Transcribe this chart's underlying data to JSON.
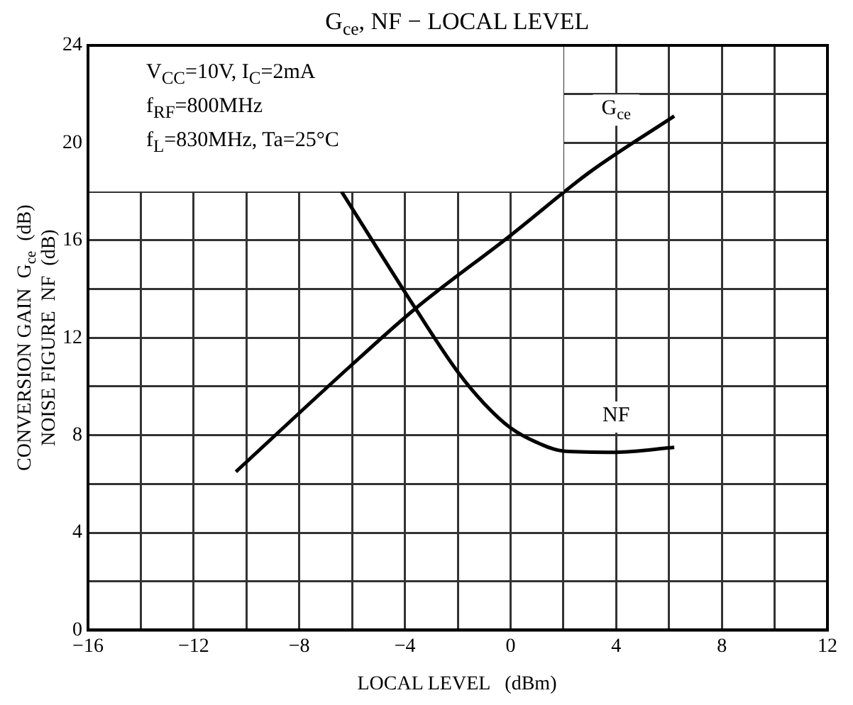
{
  "chart_data": {
    "type": "line",
    "title": "G$_{ce}$, NF − LOCAL LEVEL",
    "xlabel": "LOCAL LEVEL   (dBm)",
    "ylabel": "CONVERSION GAIN  G$_{ce}$  (dB)\nNOISE FIGURE  NF  (dB)",
    "annotations": [
      "V$_{CC}$=10V, I$_{C}$=2mA",
      "f$_{RF}$=800MHz",
      "f$_{L}$=830MHz, Ta=25°C"
    ],
    "series": [
      {
        "name": "G$_{ce}$",
        "color": "#000000",
        "x": [
          -10.4,
          -6,
          -3.6,
          0,
          3,
          6.2
        ],
        "values": [
          6.5,
          10.9,
          13.2,
          16.2,
          18.8,
          21.1
        ]
      },
      {
        "name": "NF",
        "color": "#000000",
        "x": [
          -6.4,
          -3.6,
          -2,
          -1,
          0,
          1,
          2,
          4,
          6.2
        ],
        "values": [
          18,
          13.2,
          10.6,
          9.3,
          8.3,
          7.7,
          7.35,
          7.3,
          7.5
        ]
      }
    ],
    "xlim": [
      -16,
      12
    ],
    "xticks": [
      -16,
      {
        "value": -14,
        "label": null
      },
      -12,
      {
        "value": -10,
        "label": null
      },
      -8,
      {
        "value": -6,
        "label": null
      },
      -4,
      {
        "value": -2,
        "label": null
      },
      0,
      {
        "value": 2,
        "label": null
      },
      4,
      {
        "value": 6,
        "label": null
      },
      8,
      {
        "value": 10,
        "label": null
      },
      12
    ],
    "ylim": [
      0,
      24
    ],
    "yticks": [
      0,
      {
        "value": 2,
        "label": null
      },
      4,
      {
        "value": 6,
        "label": null
      },
      8,
      {
        "value": 10,
        "label": null
      },
      12,
      {
        "value": 14,
        "label": null
      },
      16,
      {
        "value": 18,
        "label": null
      },
      20,
      {
        "value": 22,
        "label": null
      },
      24
    ],
    "grid": true,
    "legend": false,
    "marker": "none",
    "line_style": "solid"
  }
}
